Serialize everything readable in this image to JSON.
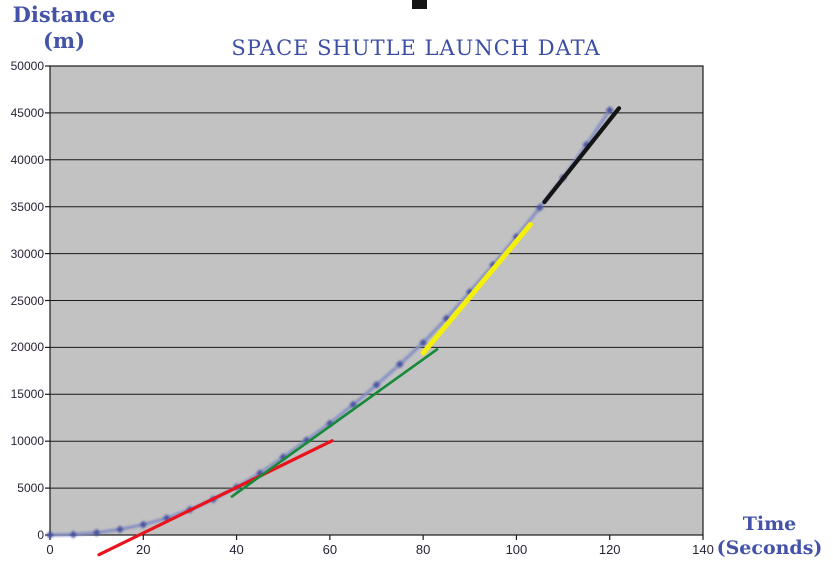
{
  "header": {
    "title": "SPACE SHUTLE LAUNCH DATA",
    "y_axis_title_line1": "Distance",
    "y_axis_title_line2": "(m)",
    "x_axis_title_line1": "Time",
    "x_axis_title_line2": "(Seconds)"
  },
  "chart_data": {
    "type": "line",
    "title": "SPACE SHUTLE LAUNCH DATA",
    "xlabel": "Time (Seconds)",
    "ylabel": "Distance (m)",
    "xlim": [
      0,
      140
    ],
    "ylim": [
      0,
      50000
    ],
    "x_ticks": [
      0,
      20,
      40,
      60,
      80,
      100,
      120,
      140
    ],
    "y_ticks": [
      0,
      5000,
      10000,
      15000,
      20000,
      25000,
      30000,
      35000,
      40000,
      45000,
      50000
    ],
    "grid": "horizontal",
    "legend": "none",
    "plot_bg": "#c2c2c2",
    "grid_color": "#1a1a1a",
    "tick_text_color": "#292236",
    "title_color": "#3d4fa4",
    "axis_title_color": "#4453a8",
    "series": [
      {
        "name": "shuttle-distance",
        "color": "#8690c2",
        "width": 3.2,
        "blur": true,
        "marker": true,
        "marker_color": "#424da0",
        "marker_size": 4,
        "x": [
          0,
          5,
          10,
          15,
          20,
          25,
          30,
          35,
          40,
          45,
          50,
          55,
          60,
          65,
          70,
          75,
          80,
          85,
          90,
          95,
          100,
          105,
          110,
          115,
          120
        ],
        "y": [
          0,
          50,
          250,
          600,
          1100,
          1800,
          2700,
          3800,
          5100,
          6600,
          8300,
          10100,
          11900,
          13900,
          16000,
          18200,
          20500,
          23100,
          25900,
          28800,
          31800,
          34900,
          38100,
          41600,
          45300
        ]
      },
      {
        "name": "tangent-red",
        "color": "#e8131c",
        "width": 3.2,
        "blur": false,
        "marker": false,
        "x": [
          10.5,
          60.5
        ],
        "y": [
          -2100,
          10050
        ]
      },
      {
        "name": "tangent-green",
        "color": "#168a38",
        "width": 2.6,
        "blur": false,
        "marker": false,
        "x": [
          39,
          83
        ],
        "y": [
          4100,
          19800
        ]
      },
      {
        "name": "tangent-yellow",
        "color": "#f4f00a",
        "width": 5,
        "blur": false,
        "marker": false,
        "x": [
          80,
          103
        ],
        "y": [
          19400,
          33100
        ]
      },
      {
        "name": "tangent-black",
        "color": "#141414",
        "width": 4.2,
        "blur": false,
        "marker": false,
        "x": [
          106,
          122
        ],
        "y": [
          35500,
          45500
        ]
      }
    ]
  }
}
